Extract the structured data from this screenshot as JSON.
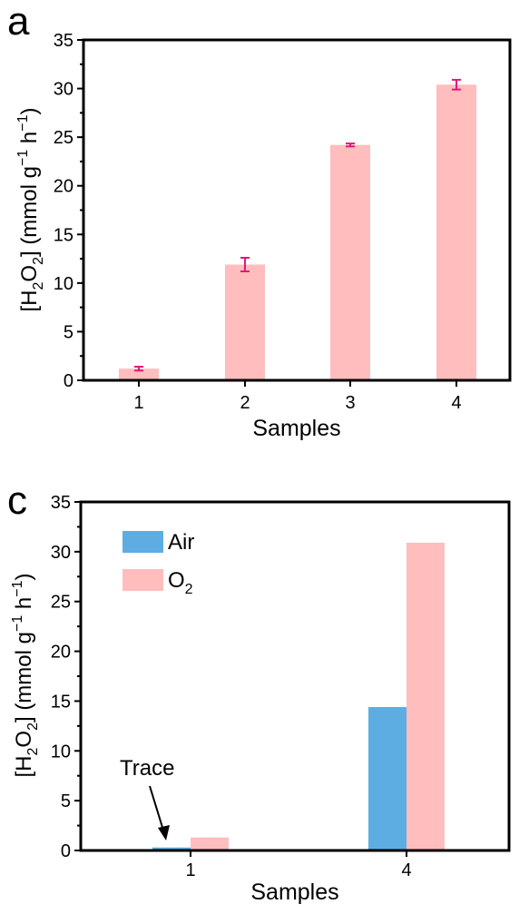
{
  "chart_data": [
    {
      "type": "bar",
      "panel_label": "a",
      "categories": [
        "1",
        "2",
        "3",
        "4"
      ],
      "values": [
        1.2,
        11.9,
        24.2,
        30.4
      ],
      "errors": [
        0.2,
        0.7,
        0.15,
        0.5
      ],
      "xlabel": "Samples",
      "ylabel": {
        "prefix": "[H",
        "sub1": "2",
        "mid": "O",
        "sub2": "2",
        "suffix": "] (mmol g",
        "sup1": "−1",
        "mid2": " h",
        "sup2": "−1",
        "end": ")"
      },
      "ylim": [
        0,
        35
      ],
      "yticks": [
        0,
        5,
        10,
        15,
        20,
        25,
        30,
        35
      ],
      "bar_color": "#FFBDBD",
      "error_color": "#E0197A"
    },
    {
      "type": "bar",
      "panel_label": "c",
      "categories": [
        "1",
        "4"
      ],
      "series": [
        {
          "name": "Air",
          "values": [
            0.3,
            14.4
          ],
          "color": "#5DADE2"
        },
        {
          "name": "O",
          "name_sub": "2",
          "values": [
            1.3,
            30.9
          ],
          "color": "#FFBDBD"
        }
      ],
      "annotation": "Trace",
      "xlabel": "Samples",
      "ylabel": {
        "prefix": "[H",
        "sub1": "2",
        "mid": "O",
        "sub2": "2",
        "suffix": "] (mmol g",
        "sup1": "−1",
        "mid2": " h",
        "sup2": "−1",
        "end": ")"
      },
      "ylim": [
        0,
        35
      ],
      "yticks": [
        0,
        5,
        10,
        15,
        20,
        25,
        30,
        35
      ],
      "legend_position": "top-left"
    }
  ]
}
